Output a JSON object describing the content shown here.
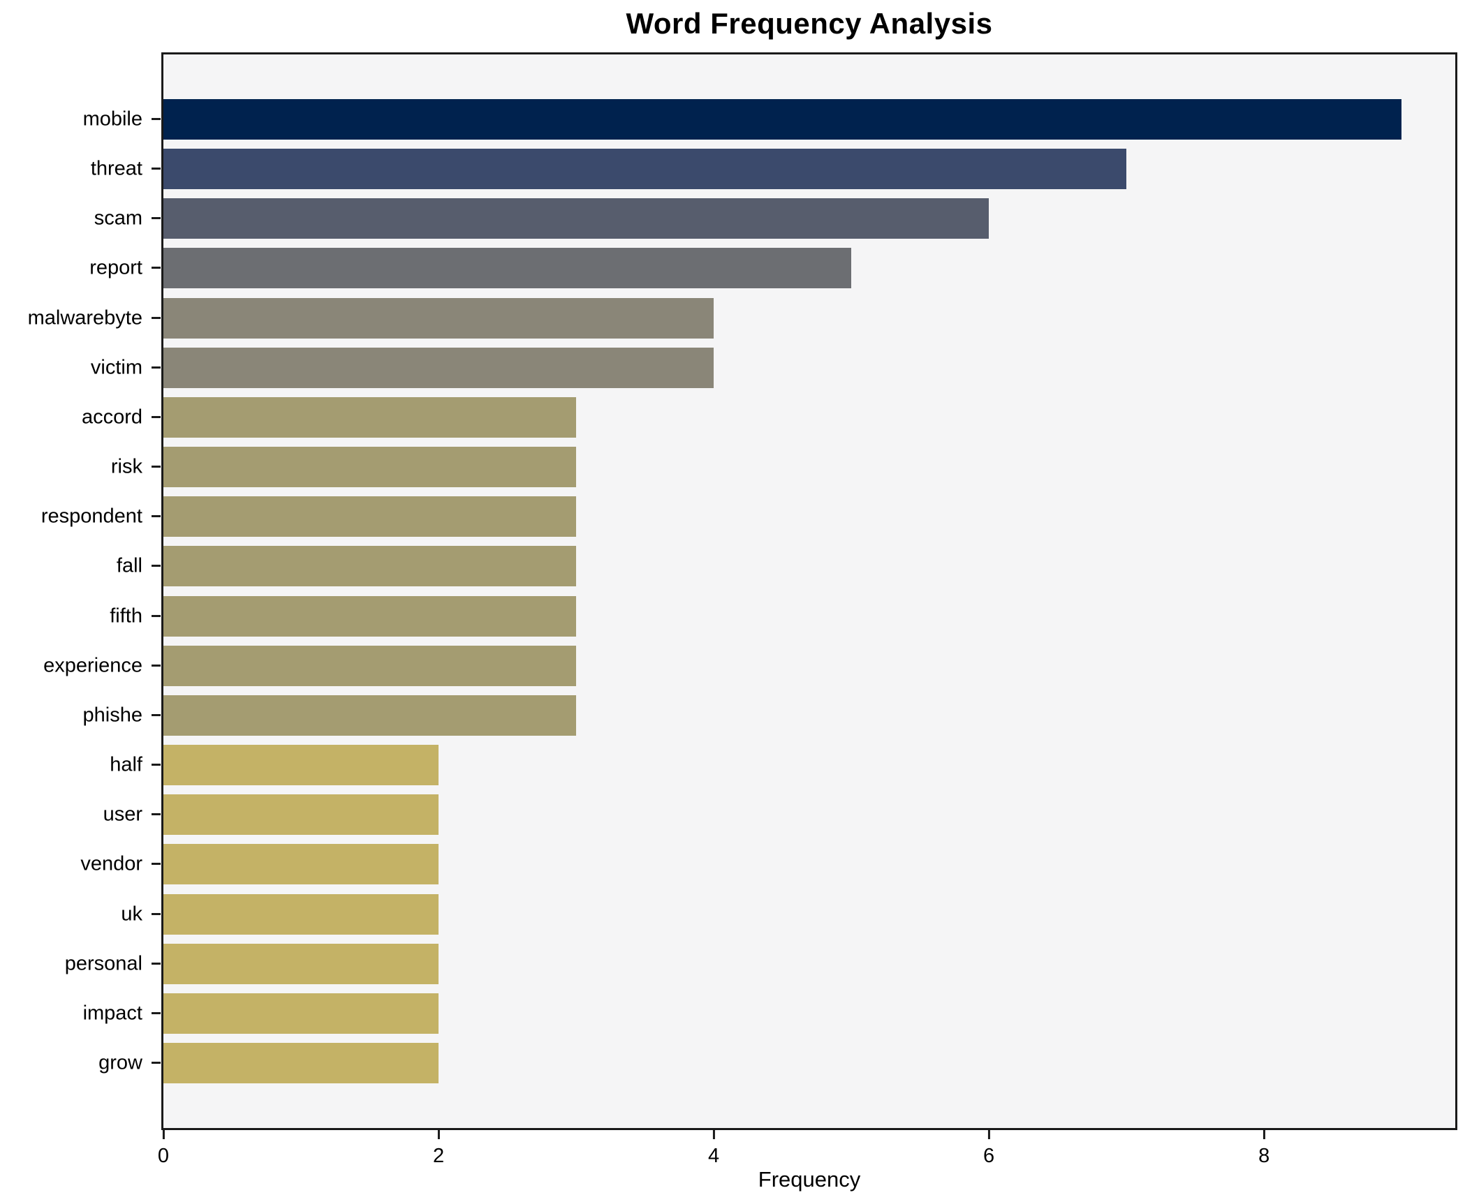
{
  "chart": {
    "title": "Word Frequency Analysis",
    "xlabel": "Frequency"
  },
  "chart_data": {
    "type": "bar",
    "orientation": "horizontal",
    "title": "Word Frequency Analysis",
    "xlabel": "Frequency",
    "ylabel": "",
    "categories": [
      "mobile",
      "threat",
      "scam",
      "report",
      "malwarebyte",
      "victim",
      "accord",
      "risk",
      "respondent",
      "fall",
      "fifth",
      "experience",
      "phishe",
      "half",
      "user",
      "vendor",
      "uk",
      "personal",
      "impact",
      "grow"
    ],
    "values": [
      9,
      7,
      6,
      5,
      4,
      4,
      3,
      3,
      3,
      3,
      3,
      3,
      3,
      2,
      2,
      2,
      2,
      2,
      2,
      2
    ],
    "bar_colors": [
      "#00224e",
      "#3b4a6c",
      "#575d6d",
      "#6c6e72",
      "#8a8678",
      "#8a8678",
      "#a49c71",
      "#a49c71",
      "#a49c71",
      "#a49c71",
      "#a49c71",
      "#a49c71",
      "#a49c71",
      "#c4b266",
      "#c4b266",
      "#c4b266",
      "#c4b266",
      "#c4b266",
      "#c4b266",
      "#c4b266"
    ],
    "xlim": [
      0,
      9.39
    ],
    "x_ticks": [
      0,
      2,
      4,
      6,
      8
    ],
    "grid": false,
    "legend": false,
    "plot_bg": "#f5f5f6",
    "fig_bg": "#ffffff",
    "spine_color": "#1a1a1a",
    "text_color": "#000000"
  }
}
